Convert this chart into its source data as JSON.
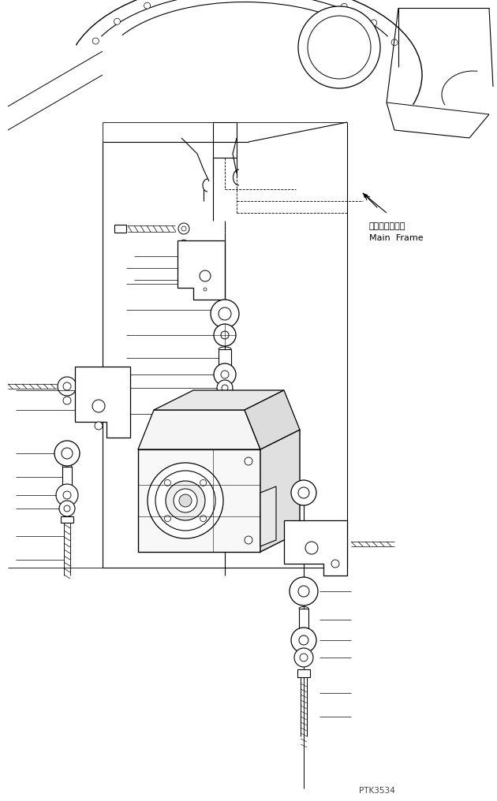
{
  "background_color": "#ffffff",
  "line_color": "#000000",
  "watermark": "PTK3534",
  "annotation_japanese": "メインフレーム",
  "annotation_english": "Main  Frame",
  "fig_width": 6.3,
  "fig_height": 10.16,
  "dpi": 100
}
